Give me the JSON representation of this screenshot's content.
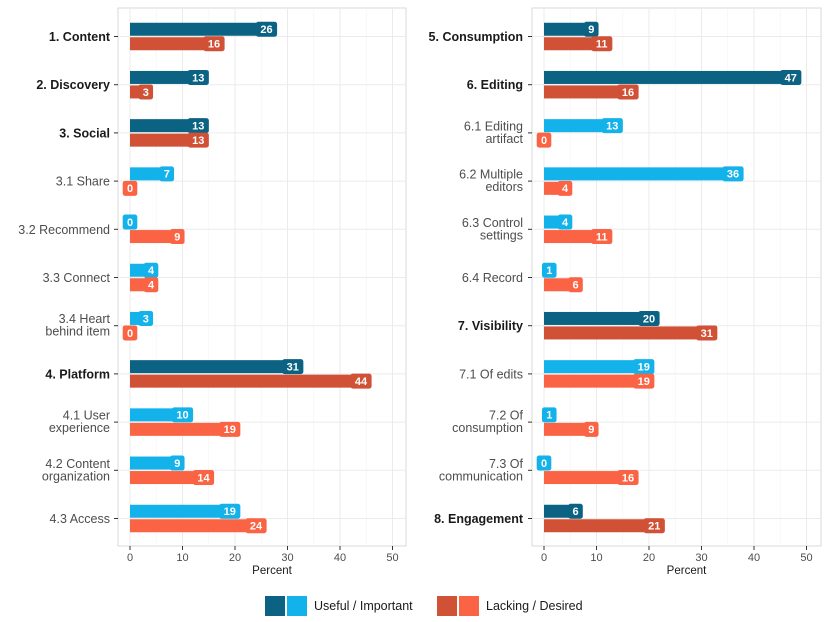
{
  "colors": {
    "useful_dark": "#0b6283",
    "useful_light": "#13b2ea",
    "lacking_dark": "#d05135",
    "lacking_light": "#fa6445",
    "panel_bg": "#ffffff",
    "grid": "#ebebeb",
    "frame": "#d9d9d9"
  },
  "legend": {
    "useful_label": "Useful / Important",
    "lacking_label": "Lacking / Desired"
  },
  "chart_data": [
    {
      "type": "bar",
      "orientation": "horizontal",
      "xlabel": "Percent",
      "xlim": [
        0,
        50
      ],
      "xticks": [
        0,
        10,
        20,
        30,
        40,
        50
      ],
      "series": [
        {
          "name": "Useful / Important"
        },
        {
          "name": "Lacking / Desired"
        }
      ],
      "categories": [
        {
          "label": [
            "1. Content"
          ],
          "main": true,
          "useful": 26,
          "lacking": 16
        },
        {
          "label": [
            "2. Discovery"
          ],
          "main": true,
          "useful": 13,
          "lacking": 3
        },
        {
          "label": [
            "3. Social"
          ],
          "main": true,
          "useful": 13,
          "lacking": 13
        },
        {
          "label": [
            "3.1 Share"
          ],
          "main": false,
          "useful": 7,
          "lacking": 0
        },
        {
          "label": [
            "3.2 Recommend"
          ],
          "main": false,
          "useful": 0,
          "lacking": 9
        },
        {
          "label": [
            "3.3 Connect"
          ],
          "main": false,
          "useful": 4,
          "lacking": 4
        },
        {
          "label": [
            "3.4 Heart",
            "behind item"
          ],
          "main": false,
          "useful": 3,
          "lacking": 0
        },
        {
          "label": [
            "4. Platform"
          ],
          "main": true,
          "useful": 31,
          "lacking": 44
        },
        {
          "label": [
            "4.1 User",
            "experience"
          ],
          "main": false,
          "useful": 10,
          "lacking": 19
        },
        {
          "label": [
            "4.2 Content",
            "organization"
          ],
          "main": false,
          "useful": 9,
          "lacking": 14
        },
        {
          "label": [
            "4.3 Access"
          ],
          "main": false,
          "useful": 19,
          "lacking": 24
        }
      ]
    },
    {
      "type": "bar",
      "orientation": "horizontal",
      "xlabel": "Percent",
      "xlim": [
        0,
        50
      ],
      "xticks": [
        0,
        10,
        20,
        30,
        40,
        50
      ],
      "series": [
        {
          "name": "Useful / Important"
        },
        {
          "name": "Lacking / Desired"
        }
      ],
      "categories": [
        {
          "label": [
            "5. Consumption"
          ],
          "main": true,
          "useful": 9,
          "lacking": 11
        },
        {
          "label": [
            "6. Editing"
          ],
          "main": true,
          "useful": 47,
          "lacking": 16
        },
        {
          "label": [
            "6.1 Editing",
            "artifact"
          ],
          "main": false,
          "useful": 13,
          "lacking": 0
        },
        {
          "label": [
            "6.2 Multiple",
            "editors"
          ],
          "main": false,
          "useful": 36,
          "lacking": 4
        },
        {
          "label": [
            "6.3 Control",
            "settings"
          ],
          "main": false,
          "useful": 4,
          "lacking": 11
        },
        {
          "label": [
            "6.4 Record"
          ],
          "main": false,
          "useful": 1,
          "lacking": 6
        },
        {
          "label": [
            "7. Visibility"
          ],
          "main": true,
          "useful": 20,
          "lacking": 31
        },
        {
          "label": [
            "7.1 Of edits"
          ],
          "main": false,
          "useful": 19,
          "lacking": 19
        },
        {
          "label": [
            "7.2 Of",
            "consumption"
          ],
          "main": false,
          "useful": 1,
          "lacking": 9
        },
        {
          "label": [
            "7.3 Of",
            "communication"
          ],
          "main": false,
          "useful": 0,
          "lacking": 16
        },
        {
          "label": [
            "8. Engagement"
          ],
          "main": true,
          "useful": 6,
          "lacking": 21
        }
      ]
    }
  ]
}
